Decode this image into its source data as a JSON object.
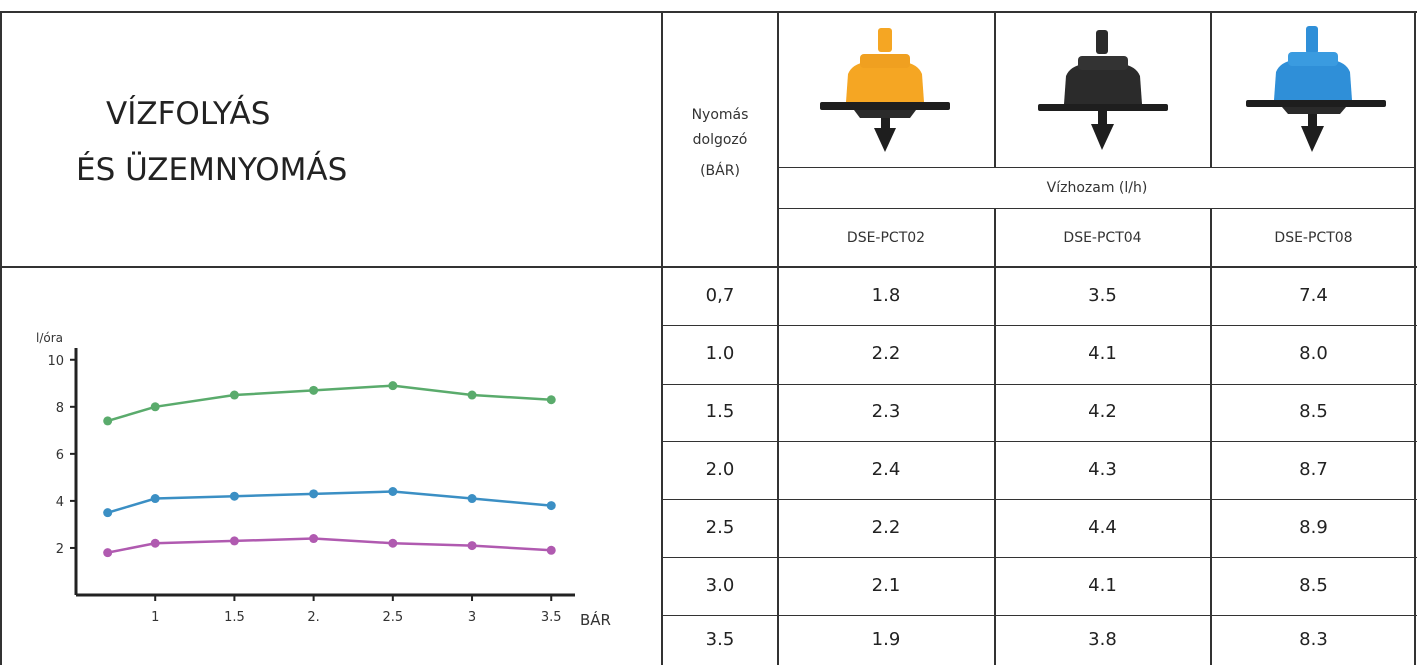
{
  "title": {
    "line1": "VÍZFOLYÁS",
    "line2": "ÉS ÜZEMNYOMÁS"
  },
  "header": {
    "pressure_line1": "Nyomás",
    "pressure_line2": "dolgozó",
    "pressure_line3": "(BÁR)",
    "flow_label": "Vízhozam (l/h)",
    "models": [
      "DSE-PCT02",
      "DSE-PCT04",
      "DSE-PCT08"
    ]
  },
  "colors": {
    "orange_dripper": "#f5a623",
    "black_dripper": "#2b2b2b",
    "blue_dripper": "#2f8fd8"
  },
  "icons": [
    "orange-dripper-icon",
    "black-dripper-icon",
    "blue-dripper-icon"
  ],
  "table": {
    "rows": [
      {
        "pressure": "0,7",
        "v1": "1.8",
        "v2": "3.5",
        "v3": "7.4"
      },
      {
        "pressure": "1.0",
        "v1": "2.2",
        "v2": "4.1",
        "v3": "8.0"
      },
      {
        "pressure": "1.5",
        "v1": "2.3",
        "v2": "4.2",
        "v3": "8.5"
      },
      {
        "pressure": "2.0",
        "v1": "2.4",
        "v2": "4.3",
        "v3": "8.7"
      },
      {
        "pressure": "2.5",
        "v1": "2.2",
        "v2": "4.4",
        "v3": "8.9"
      },
      {
        "pressure": "3.0",
        "v1": "2.1",
        "v2": "4.1",
        "v3": "8.5"
      },
      {
        "pressure": "3.5",
        "v1": "1.9",
        "v2": "3.8",
        "v3": "8.3"
      }
    ]
  },
  "chart_data": {
    "type": "line",
    "ylabel": "l/óra",
    "xlabel": "BÁR",
    "x": [
      0.7,
      1.0,
      1.5,
      2.0,
      2.5,
      3.0,
      3.5
    ],
    "xticks": [
      1,
      1.5,
      2,
      2.5,
      3,
      3.5
    ],
    "xtick_labels": [
      "1",
      "1.5",
      "2.",
      "2.5",
      "3",
      "3.5"
    ],
    "yticks": [
      2,
      4,
      6,
      8,
      10
    ],
    "ytick_labels": [
      "2",
      "4",
      "6",
      "8",
      "10"
    ],
    "xlim": [
      0.5,
      3.65
    ],
    "ylim": [
      0,
      10.5
    ],
    "grid": false,
    "series": [
      {
        "values": [
          7.4,
          8.0,
          8.5,
          8.7,
          8.9,
          8.5,
          8.3
        ],
        "color": "#5aab6c"
      },
      {
        "values": [
          3.5,
          4.1,
          4.2,
          4.3,
          4.4,
          4.1,
          3.8
        ],
        "color": "#3b8fc4"
      },
      {
        "values": [
          1.8,
          2.2,
          2.3,
          2.4,
          2.2,
          2.1,
          1.9
        ],
        "color": "#b05ab0"
      }
    ]
  }
}
